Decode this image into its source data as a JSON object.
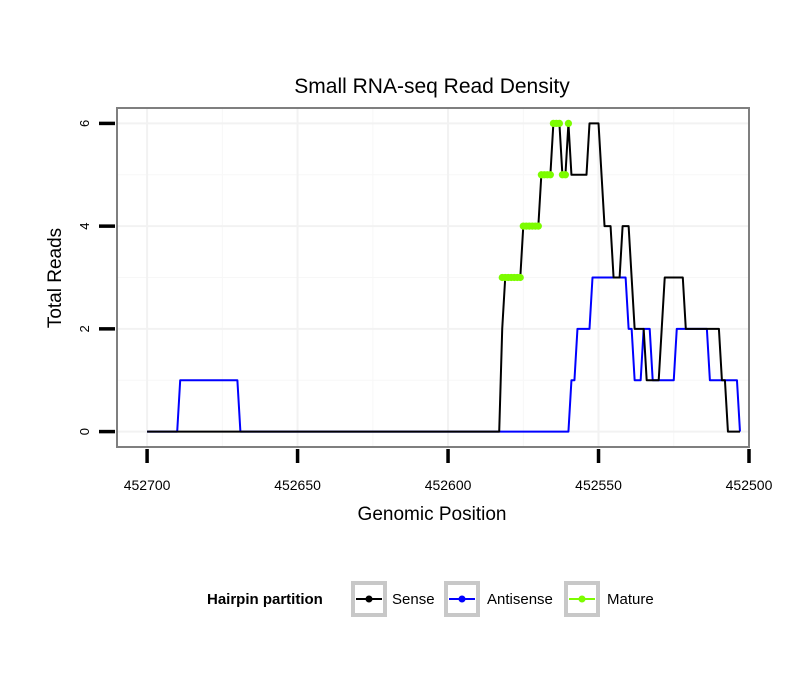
{
  "chart_data": {
    "type": "line",
    "title": "Small RNA-seq Read Density",
    "xlabel": "Genomic Position",
    "ylabel": "Total Reads",
    "xlim": [
      452710,
      452500
    ],
    "ylim": [
      -0.3,
      6.3
    ],
    "x_ticks": [
      452700,
      452650,
      452600,
      452550,
      452500
    ],
    "x_tick_labels": [
      "452700",
      "452650",
      "452600",
      "452550",
      "452500"
    ],
    "y_ticks": [
      0,
      2,
      4,
      6
    ],
    "y_tick_labels": [
      "0",
      "2",
      "4",
      "6"
    ],
    "grid": true,
    "legend": {
      "title": "Hairpin partition",
      "position": "bottom",
      "entries": [
        "Sense",
        "Antisense",
        "Mature"
      ]
    },
    "colors": {
      "Sense": "#000000",
      "Antisense": "#0000ff",
      "Mature": "#7cfc00"
    },
    "series": [
      {
        "name": "Sense",
        "points": [
          [
            452700,
            0
          ],
          [
            452583,
            0
          ],
          [
            452582,
            2
          ],
          [
            452581,
            3
          ],
          [
            452576,
            3
          ],
          [
            452575,
            4
          ],
          [
            452570,
            4
          ],
          [
            452569,
            5
          ],
          [
            452566,
            5
          ],
          [
            452565,
            6
          ],
          [
            452563,
            6
          ],
          [
            452562,
            5
          ],
          [
            452561,
            5
          ],
          [
            452560,
            6
          ],
          [
            452559,
            5
          ],
          [
            452554,
            5
          ],
          [
            452553,
            6
          ],
          [
            452550,
            6
          ],
          [
            452549,
            5
          ],
          [
            452548,
            4
          ],
          [
            452546,
            4
          ],
          [
            452545,
            3
          ],
          [
            452543,
            3
          ],
          [
            452542,
            4
          ],
          [
            452540,
            4
          ],
          [
            452539,
            3
          ],
          [
            452538,
            2
          ],
          [
            452535,
            2
          ],
          [
            452534,
            1
          ],
          [
            452530,
            1
          ],
          [
            452529,
            2
          ],
          [
            452528,
            3
          ],
          [
            452522,
            3
          ],
          [
            452521,
            2
          ],
          [
            452510,
            2
          ],
          [
            452509,
            1
          ],
          [
            452508,
            1
          ],
          [
            452507,
            0
          ],
          [
            452503,
            0
          ]
        ]
      },
      {
        "name": "Antisense",
        "points": [
          [
            452700,
            0
          ],
          [
            452690,
            0
          ],
          [
            452689,
            1
          ],
          [
            452670,
            1
          ],
          [
            452669,
            0
          ],
          [
            452560,
            0
          ],
          [
            452559,
            1
          ],
          [
            452558,
            1
          ],
          [
            452557,
            2
          ],
          [
            452553,
            2
          ],
          [
            452552,
            3
          ],
          [
            452541,
            3
          ],
          [
            452540,
            2
          ],
          [
            452539,
            2
          ],
          [
            452538,
            1
          ],
          [
            452536,
            1
          ],
          [
            452535,
            2
          ],
          [
            452533,
            2
          ],
          [
            452532,
            1
          ],
          [
            452525,
            1
          ],
          [
            452524,
            2
          ],
          [
            452514,
            2
          ],
          [
            452513,
            1
          ],
          [
            452509,
            1
          ],
          [
            452508,
            1
          ],
          [
            452504,
            1
          ],
          [
            452503,
            0
          ]
        ]
      },
      {
        "name": "Mature",
        "points": [
          [
            452582,
            3
          ],
          [
            452581,
            3
          ],
          [
            452580,
            3
          ],
          [
            452579,
            3
          ],
          [
            452578,
            3
          ],
          [
            452577,
            3
          ],
          [
            452576,
            3
          ],
          [
            452575,
            4
          ],
          [
            452574,
            4
          ],
          [
            452573,
            4
          ],
          [
            452572,
            4
          ],
          [
            452571,
            4
          ],
          [
            452570,
            4
          ],
          [
            452569,
            5
          ],
          [
            452568,
            5
          ],
          [
            452567,
            5
          ],
          [
            452566,
            5
          ],
          [
            452565,
            6
          ],
          [
            452564,
            6
          ],
          [
            452563,
            6
          ],
          [
            452562,
            5
          ],
          [
            452561,
            5
          ],
          [
            452560,
            6
          ]
        ]
      }
    ]
  }
}
